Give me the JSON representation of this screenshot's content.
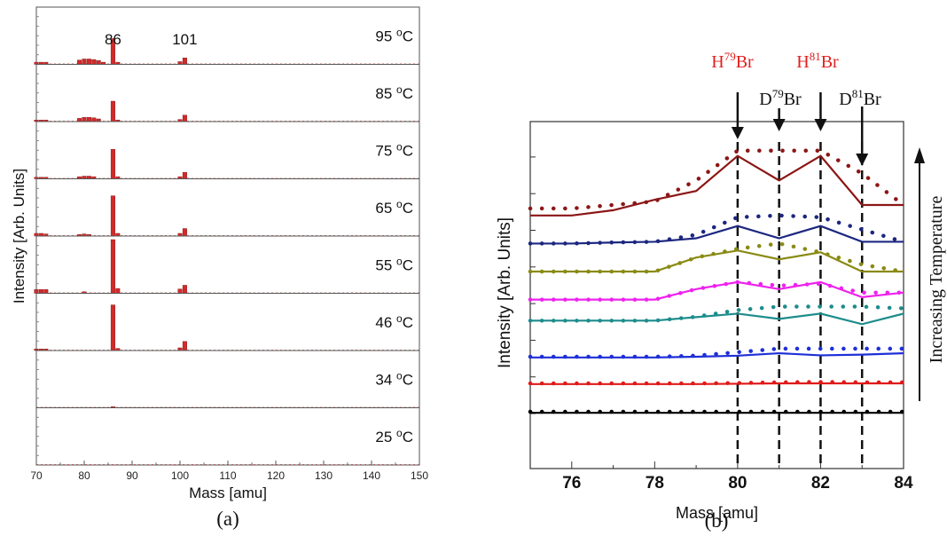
{
  "chart_data": [
    {
      "type": "bar",
      "panel_caption": "(a)",
      "xlabel": "Mass [amu]",
      "ylabel": "Intensity [Arb. Units]",
      "xlim": [
        70,
        150
      ],
      "x_ticks": [
        70,
        80,
        90,
        100,
        110,
        120,
        130,
        140,
        150
      ],
      "bar_color": "#d42a2a",
      "peak_labels": [
        "86",
        "101"
      ],
      "degree_unit": "°C",
      "panels": [
        {
          "temperature": "95",
          "bars": [
            [
              70,
              0.04
            ],
            [
              71,
              0.04
            ],
            [
              72,
              0.04
            ],
            [
              79,
              0.08
            ],
            [
              80,
              0.1
            ],
            [
              81,
              0.1
            ],
            [
              82,
              0.09
            ],
            [
              83,
              0.07
            ],
            [
              84,
              0.04
            ],
            [
              86,
              0.48
            ],
            [
              87,
              0.04
            ],
            [
              100,
              0.05
            ],
            [
              101,
              0.12
            ]
          ]
        },
        {
          "temperature": "85",
          "bars": [
            [
              70,
              0.03
            ],
            [
              71,
              0.03
            ],
            [
              72,
              0.03
            ],
            [
              79,
              0.06
            ],
            [
              80,
              0.08
            ],
            [
              81,
              0.08
            ],
            [
              82,
              0.07
            ],
            [
              83,
              0.05
            ],
            [
              86,
              0.38
            ],
            [
              87,
              0.03
            ],
            [
              100,
              0.04
            ],
            [
              101,
              0.12
            ]
          ]
        },
        {
          "temperature": "75",
          "bars": [
            [
              70,
              0.03
            ],
            [
              71,
              0.03
            ],
            [
              72,
              0.03
            ],
            [
              79,
              0.04
            ],
            [
              80,
              0.05
            ],
            [
              81,
              0.05
            ],
            [
              82,
              0.04
            ],
            [
              86,
              0.55
            ],
            [
              87,
              0.04
            ],
            [
              100,
              0.04
            ],
            [
              101,
              0.12
            ]
          ]
        },
        {
          "temperature": "65",
          "bars": [
            [
              70,
              0.05
            ],
            [
              71,
              0.05
            ],
            [
              72,
              0.04
            ],
            [
              79,
              0.03
            ],
            [
              80,
              0.04
            ],
            [
              81,
              0.03
            ],
            [
              86,
              0.75
            ],
            [
              87,
              0.05
            ],
            [
              100,
              0.05
            ],
            [
              101,
              0.14
            ]
          ]
        },
        {
          "temperature": "55",
          "bars": [
            [
              70,
              0.07
            ],
            [
              71,
              0.07
            ],
            [
              72,
              0.07
            ],
            [
              80,
              0.03
            ],
            [
              86,
              1.0
            ],
            [
              87,
              0.09
            ],
            [
              100,
              0.08
            ],
            [
              101,
              0.15
            ]
          ]
        },
        {
          "temperature": "46",
          "bars": [
            [
              70,
              0.03
            ],
            [
              71,
              0.03
            ],
            [
              72,
              0.03
            ],
            [
              86,
              0.85
            ],
            [
              87,
              0.04
            ],
            [
              100,
              0.05
            ],
            [
              101,
              0.17
            ]
          ]
        },
        {
          "temperature": "34",
          "bars": [
            [
              86,
              0.02
            ]
          ]
        },
        {
          "temperature": "25",
          "bars": []
        }
      ]
    },
    {
      "type": "line",
      "panel_caption": "(b)",
      "xlabel": "Mass [amu]",
      "ylabel": "Intensity [Arb. Units]",
      "side_label": "Increasing Temperature",
      "xlim": [
        75,
        84
      ],
      "ylim": [
        0,
        8
      ],
      "x_ticks": [
        76,
        78,
        80,
        82,
        84
      ],
      "x": [
        75,
        76,
        77,
        78,
        79,
        80,
        81,
        82,
        83,
        84
      ],
      "reference_masses": [
        80,
        81,
        82,
        83
      ],
      "annotations": [
        {
          "base": "H",
          "sup": "79",
          "tail": "Br",
          "color": "#e02020",
          "mass": 80
        },
        {
          "base": "D",
          "sup": "79",
          "tail": "Br",
          "color": "#111111",
          "mass": 81
        },
        {
          "base": "H",
          "sup": "81",
          "tail": "Br",
          "color": "#e02020",
          "mass": 82
        },
        {
          "base": "D",
          "sup": "81",
          "tail": "Br",
          "color": "#111111",
          "mass": 83
        }
      ],
      "series": [
        {
          "color": "#000000",
          "solid": [
            0.02,
            0.02,
            0.02,
            0.02,
            0.02,
            0.02,
            0.02,
            0.02,
            0.02,
            0.02
          ],
          "dotted": [
            0.05,
            0.05,
            0.05,
            0.05,
            0.05,
            0.05,
            0.05,
            0.05,
            0.05,
            0.05
          ]
        },
        {
          "color": "#e01a1a",
          "solid": [
            0.84,
            0.84,
            0.84,
            0.84,
            0.84,
            0.85,
            0.86,
            0.86,
            0.86,
            0.86
          ],
          "dotted": [
            0.86,
            0.86,
            0.86,
            0.86,
            0.86,
            0.87,
            0.89,
            0.9,
            0.89,
            0.89
          ]
        },
        {
          "color": "#1e2fd8",
          "solid": [
            1.6,
            1.6,
            1.6,
            1.6,
            1.62,
            1.65,
            1.72,
            1.66,
            1.68,
            1.72
          ],
          "dotted": [
            1.62,
            1.62,
            1.62,
            1.62,
            1.65,
            1.75,
            1.85,
            1.85,
            1.85,
            1.85
          ]
        },
        {
          "color": "#1e8c8c",
          "solid": [
            2.65,
            2.65,
            2.65,
            2.65,
            2.75,
            2.85,
            2.7,
            2.85,
            2.55,
            2.85
          ],
          "dotted": [
            2.65,
            2.65,
            2.65,
            2.65,
            2.76,
            2.95,
            3.05,
            3.05,
            3.05,
            3.0
          ]
        },
        {
          "color": "#ee22ee",
          "solid": [
            3.25,
            3.25,
            3.25,
            3.25,
            3.55,
            3.75,
            3.55,
            3.75,
            3.32,
            3.45
          ],
          "dotted": [
            3.25,
            3.25,
            3.25,
            3.25,
            3.55,
            3.75,
            3.65,
            3.7,
            3.45,
            3.45
          ]
        },
        {
          "color": "#8a8a14",
          "solid": [
            4.05,
            4.05,
            4.05,
            4.05,
            4.45,
            4.65,
            4.4,
            4.6,
            4.05,
            4.05
          ],
          "dotted": [
            4.05,
            4.05,
            4.05,
            4.05,
            4.45,
            4.7,
            4.85,
            4.6,
            4.25,
            4.05
          ]
        },
        {
          "color": "#1c2780",
          "solid": [
            4.85,
            4.85,
            4.88,
            4.9,
            5.0,
            5.35,
            5.0,
            5.35,
            4.9,
            4.9
          ],
          "dotted": [
            4.85,
            4.85,
            4.88,
            4.9,
            5.1,
            5.6,
            5.65,
            5.6,
            5.25,
            4.9
          ]
        },
        {
          "color": "#8c1616",
          "solid": [
            5.65,
            5.65,
            5.8,
            6.1,
            6.35,
            7.35,
            6.65,
            7.35,
            5.95,
            5.95
          ],
          "dotted": [
            5.85,
            5.85,
            5.95,
            6.05,
            6.65,
            7.5,
            7.5,
            7.5,
            6.85,
            5.95
          ]
        }
      ]
    }
  ]
}
